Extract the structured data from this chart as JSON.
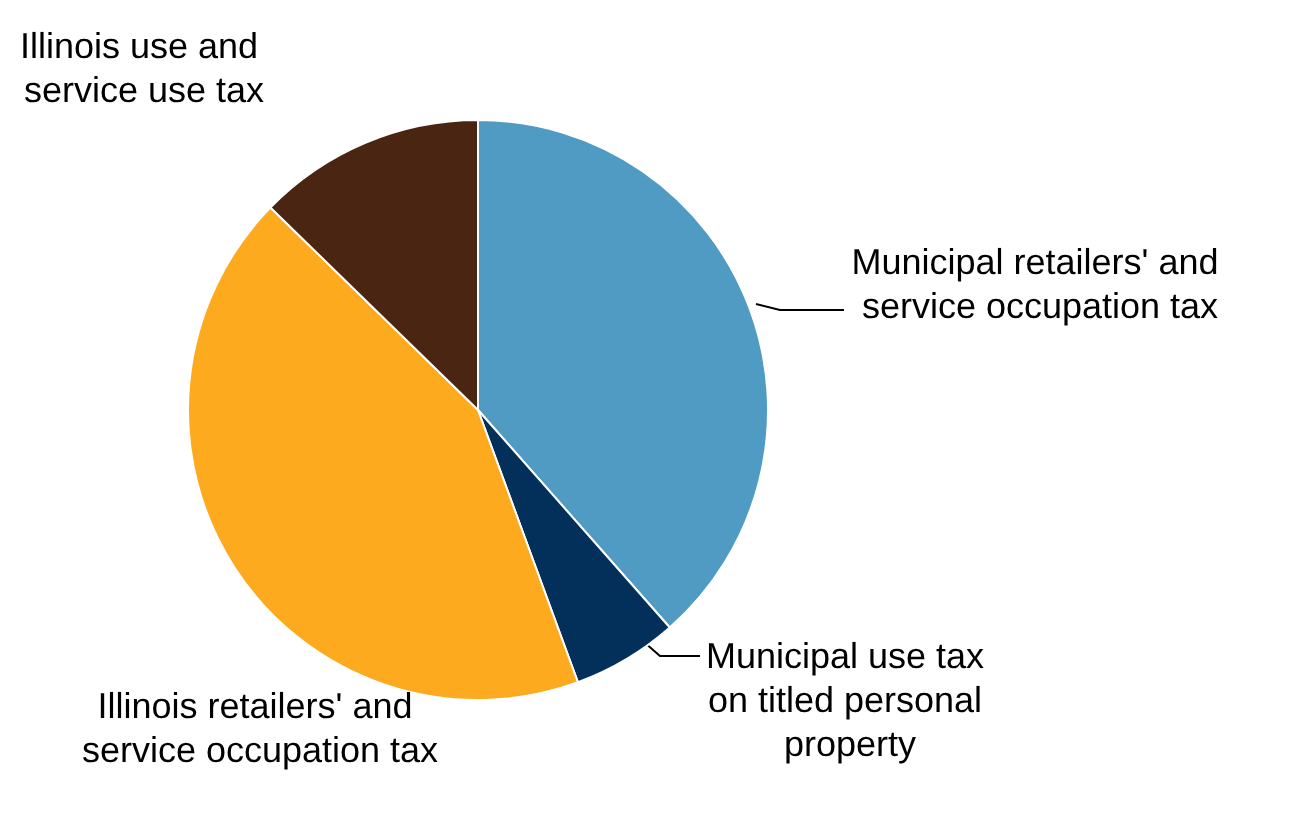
{
  "chart_data": {
    "type": "pie",
    "categories": [
      "Municipal retailers' and service occupation tax",
      "Municipal use tax on titled personal property",
      "Illinois retailers' and service occupation tax",
      "Illinois use and service use tax"
    ],
    "values": [
      38.5,
      5.9,
      42.9,
      12.7
    ],
    "colors": [
      "#4f9bc4",
      "#02305a",
      "#fdaa1e",
      "#4a2512"
    ],
    "legend": false
  }
}
